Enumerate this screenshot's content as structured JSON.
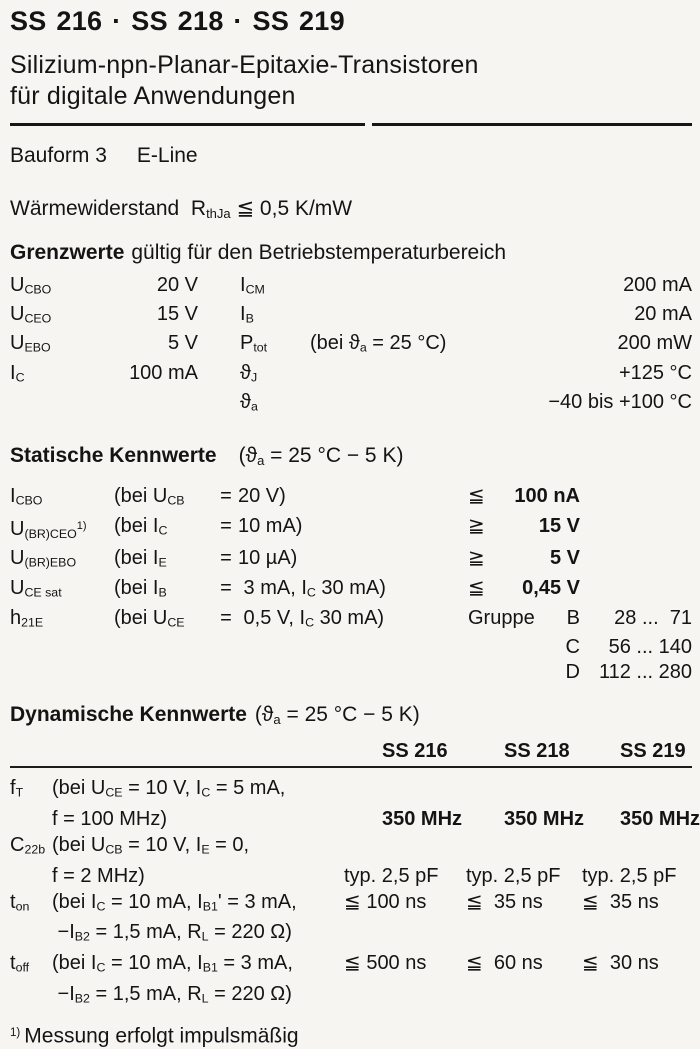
{
  "header": {
    "title": "SS 216 · SS 218 · SS 219",
    "subtitle_line1": "Silizium-npn-Planar-Epitaxie-Transistoren",
    "subtitle_line2": "für digitale Anwendungen"
  },
  "bauform": {
    "label": "Bauform 3",
    "value": "E-Line"
  },
  "thermal": {
    "text": "Wärmewiderstand  R_{thJa} ≦ 0,5 K/mW"
  },
  "limits": {
    "heading": "Grenzwerte",
    "heading_rest": "gültig für den Betriebstemperaturbereich",
    "rows": [
      {
        "sym1": "U_{CBO}",
        "val1": "20 V",
        "sym2": "I_{CM}",
        "cond": "",
        "val2": "200 mA"
      },
      {
        "sym1": "U_{CEO}",
        "val1": "15 V",
        "sym2": "I_{B}",
        "cond": "",
        "val2": "20 mA"
      },
      {
        "sym1": "U_{EBO}",
        "val1": "5 V",
        "sym2": "P_{tot}",
        "cond": "(bei ϑ_{a} = 25 °C)",
        "val2": "200 mW"
      },
      {
        "sym1": "I_{C}",
        "val1": "100 mA",
        "sym2": "ϑ_{J}",
        "cond": "",
        "val2": "+125 °C"
      },
      {
        "sym1": "",
        "val1": "",
        "sym2": "ϑ_{a}",
        "cond": "",
        "val2": "−40 bis +100 °C"
      }
    ]
  },
  "static_section": {
    "heading": "Statische Kennwerte",
    "condition": "(ϑ_{a} = 25 °C − 5 K)",
    "rows": [
      {
        "sym": "I_{CBO}",
        "cond_sym": "(bei U_{CB}",
        "eq": "=",
        "cond_val": "20 V)",
        "rel": "≦",
        "value": "100 nA"
      },
      {
        "sym": "U_{(BR)CEO}^{1)}",
        "cond_sym": "(bei I_{C}",
        "eq": "=",
        "cond_val": "10 mA)",
        "rel": "≧",
        "value": "15 V"
      },
      {
        "sym": "U_{(BR)EBO}",
        "cond_sym": "(bei I_{E}",
        "eq": "=",
        "cond_val": "10 µA)",
        "rel": "≧",
        "value": "5 V"
      },
      {
        "sym": "U_{CE sat}",
        "cond_sym": "(bei I_{B}",
        "eq": "=",
        "cond_val": " 3 mA, I_{C} 30 mA)",
        "rel": "≦",
        "value": "0,45 V"
      },
      {
        "sym": "h_{21E}",
        "cond_sym": "(bei U_{CE}",
        "eq": "=",
        "cond_val": " 0,5 V, I_{C} 30 mA)",
        "rel": "",
        "value": ""
      }
    ],
    "groups": {
      "label": "Gruppe",
      "items": [
        {
          "name": "B",
          "range": "28 ...  71"
        },
        {
          "name": "C",
          "range": "56 ... 140"
        },
        {
          "name": "D",
          "range": "112 ... 280"
        }
      ]
    }
  },
  "dynamic_section": {
    "heading": "Dynamische Kennwerte",
    "condition": "(ϑ_{a} = 25 °C − 5 K)",
    "columns": [
      "SS 216",
      "SS 218",
      "SS 219"
    ],
    "rows": [
      {
        "sym": "f_{T}",
        "cond1": "(bei U_{CE} = 10 V, I_{C} = 5 mA,",
        "cond2": "f = 100 MHz)",
        "v1": "350 MHz",
        "v2": "350 MHz",
        "v3": "350 MHz"
      },
      {
        "sym": "C_{22b}",
        "cond1": "(bei U_{CB} = 10 V, I_{E} = 0,",
        "cond2": "f = 2 MHz)",
        "v1": "typ. 2,5 pF",
        "v2": "typ. 2,5 pF",
        "v3": "typ. 2,5 pF"
      },
      {
        "sym": "t_{on}",
        "cond1": "(bei I_{C} = 10 mA, I_{B1}' = 3 mA,",
        "cond2": " −I_{B2} = 1,5 mA, R_{L} = 220 Ω)",
        "v1": "≦ 100 ns",
        "v2": "≦  35 ns",
        "v3": "≦  35 ns"
      },
      {
        "sym": "t_{off}",
        "cond1": "(bei I_{C} = 10 mA, I_{B1} = 3 mA,",
        "cond2": " −I_{B2} = 1,5 mA, R_{L} = 220 Ω)",
        "v1": "≦ 500 ns",
        "v2": "≦  60 ns",
        "v3": "≦  30 ns"
      }
    ]
  },
  "footnote": {
    "marker": "1)",
    "text": "Messung erfolgt impulsmäßig"
  }
}
